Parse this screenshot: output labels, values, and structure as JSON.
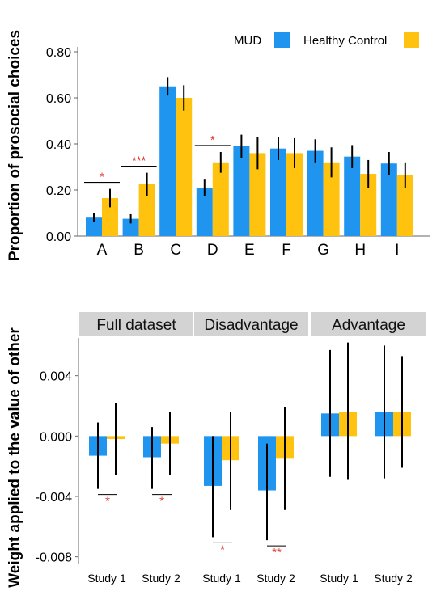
{
  "colors": {
    "mud": "#1f95f0",
    "healthy_control": "#ffc20e",
    "sig": "#e03c31",
    "strip": "#d3d3d3",
    "axis": "#555555"
  },
  "chart_data": [
    {
      "type": "bar",
      "ylabel": "Proportion of prosocial choices",
      "ylim": [
        0,
        0.8
      ],
      "yticks": [
        "0.00",
        "0.20",
        "0.40",
        "0.60",
        "0.80"
      ],
      "ytick_values": [
        0,
        0.2,
        0.4,
        0.6,
        0.8
      ],
      "legend": {
        "position": "top-right",
        "entries": [
          "MUD",
          "Healthy Control"
        ]
      },
      "categories": [
        "A",
        "B",
        "C",
        "D",
        "E",
        "F",
        "G",
        "H",
        "I"
      ],
      "series": [
        {
          "name": "MUD",
          "values": [
            0.08,
            0.075,
            0.65,
            0.21,
            0.39,
            0.38,
            0.37,
            0.345,
            0.315
          ],
          "err": [
            0.02,
            0.02,
            0.04,
            0.035,
            0.05,
            0.05,
            0.05,
            0.05,
            0.05
          ]
        },
        {
          "name": "Healthy Control",
          "values": [
            0.165,
            0.225,
            0.6,
            0.32,
            0.36,
            0.36,
            0.32,
            0.27,
            0.265
          ],
          "err": [
            0.04,
            0.05,
            0.055,
            0.045,
            0.07,
            0.065,
            0.065,
            0.06,
            0.055
          ]
        }
      ],
      "significance": [
        {
          "category": "A",
          "label": "*"
        },
        {
          "category": "B",
          "label": "***"
        },
        {
          "category": "D",
          "label": "*"
        }
      ]
    },
    {
      "type": "bar",
      "ylabel": "Weight applied to the value of other",
      "ylim": [
        -0.0085,
        0.0065
      ],
      "yticks": [
        "-0.008",
        "-0.004",
        "0.000",
        "0.004"
      ],
      "ytick_values": [
        -0.008,
        -0.004,
        0,
        0.004
      ],
      "facets": [
        {
          "title": "Full dataset",
          "categories": [
            "Study 1",
            "Study 2"
          ],
          "MUD": [
            -0.0013,
            -0.0014
          ],
          "Healthy Control": [
            -0.0002,
            -0.0005
          ],
          "MUD_ci": [
            [
              -0.0035,
              0.0009
            ],
            [
              -0.0035,
              0.0006
            ]
          ],
          "Healthy Control_ci": [
            [
              -0.0026,
              0.0022
            ],
            [
              -0.0026,
              0.0016
            ]
          ],
          "significance": [
            "*",
            "*"
          ]
        },
        {
          "title": "Disadvantage",
          "categories": [
            "Study 1",
            "Study 2"
          ],
          "MUD": [
            -0.0033,
            -0.0036
          ],
          "Healthy Control": [
            -0.0016,
            -0.0015
          ],
          "MUD_ci": [
            [
              -0.0067,
              0
            ],
            [
              -0.0069,
              -0.0005
            ]
          ],
          "Healthy Control_ci": [
            [
              -0.0049,
              0.0016
            ],
            [
              -0.0049,
              0.0019
            ]
          ],
          "significance": [
            "*",
            "**"
          ]
        },
        {
          "title": "Advantage",
          "categories": [
            "Study 1",
            "Study 2"
          ],
          "MUD": [
            0.0015,
            0.0016
          ],
          "Healthy Control": [
            0.0016,
            0.0016
          ],
          "MUD_ci": [
            [
              -0.0027,
              0.0057
            ],
            [
              -0.0028,
              0.006
            ]
          ],
          "Healthy Control_ci": [
            [
              -0.0029,
              0.0062
            ],
            [
              -0.0021,
              0.0053
            ]
          ],
          "significance": [
            "",
            ""
          ]
        }
      ]
    }
  ]
}
